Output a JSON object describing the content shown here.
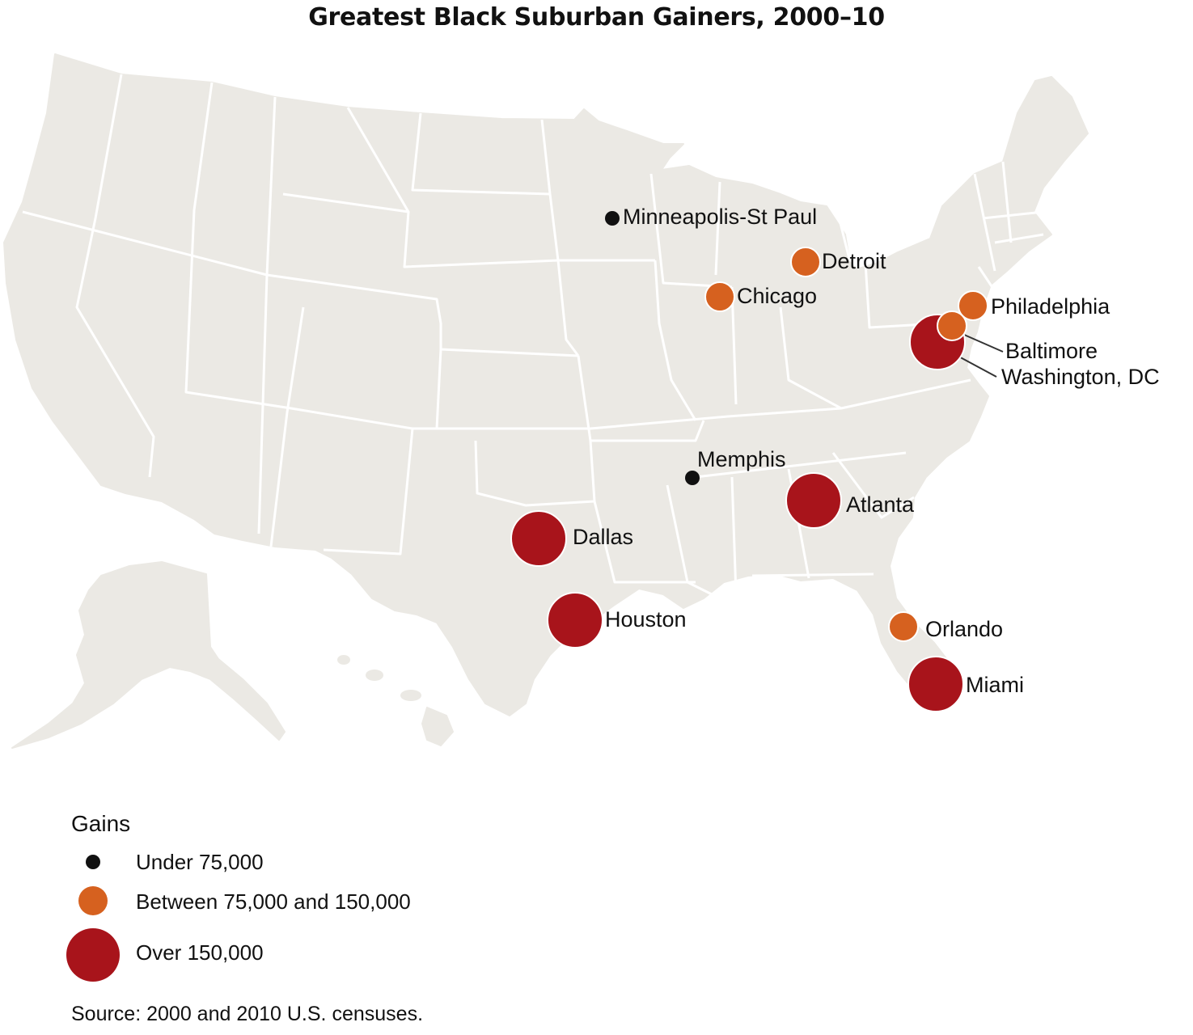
{
  "title": "Greatest Black Suburban Gainers, 2000–10",
  "colors": {
    "land": "#ebe9e4",
    "border": "#ffffff",
    "under_75000": "#111111",
    "between_75000_150000": "#d6611f",
    "over_150000": "#a8141b"
  },
  "cities": [
    {
      "id": "minneapolis",
      "name": "Minneapolis-St Paul",
      "category": "under_75000"
    },
    {
      "id": "detroit",
      "name": "Detroit",
      "category": "between_75000_150000"
    },
    {
      "id": "chicago",
      "name": "Chicago",
      "category": "between_75000_150000"
    },
    {
      "id": "philadelphia",
      "name": "Philadelphia",
      "category": "between_75000_150000"
    },
    {
      "id": "washington",
      "name": "Washington, DC",
      "category": "over_150000"
    },
    {
      "id": "baltimore",
      "name": "Baltimore",
      "category": "between_75000_150000"
    },
    {
      "id": "memphis",
      "name": "Memphis",
      "category": "under_75000"
    },
    {
      "id": "atlanta",
      "name": "Atlanta",
      "category": "over_150000"
    },
    {
      "id": "dallas",
      "name": "Dallas",
      "category": "over_150000"
    },
    {
      "id": "houston",
      "name": "Houston",
      "category": "over_150000"
    },
    {
      "id": "orlando",
      "name": "Orlando",
      "category": "between_75000_150000"
    },
    {
      "id": "miami",
      "name": "Miami",
      "category": "over_150000"
    }
  ],
  "legend": {
    "title": "Gains",
    "items": [
      {
        "category": "under_75000",
        "label": "Under 75,000"
      },
      {
        "category": "between_75000_150000",
        "label": "Between 75,000 and 150,000"
      },
      {
        "category": "over_150000",
        "label": "Over 150,000"
      }
    ]
  },
  "source": "Source: 2000 and 2010 U.S. censuses."
}
